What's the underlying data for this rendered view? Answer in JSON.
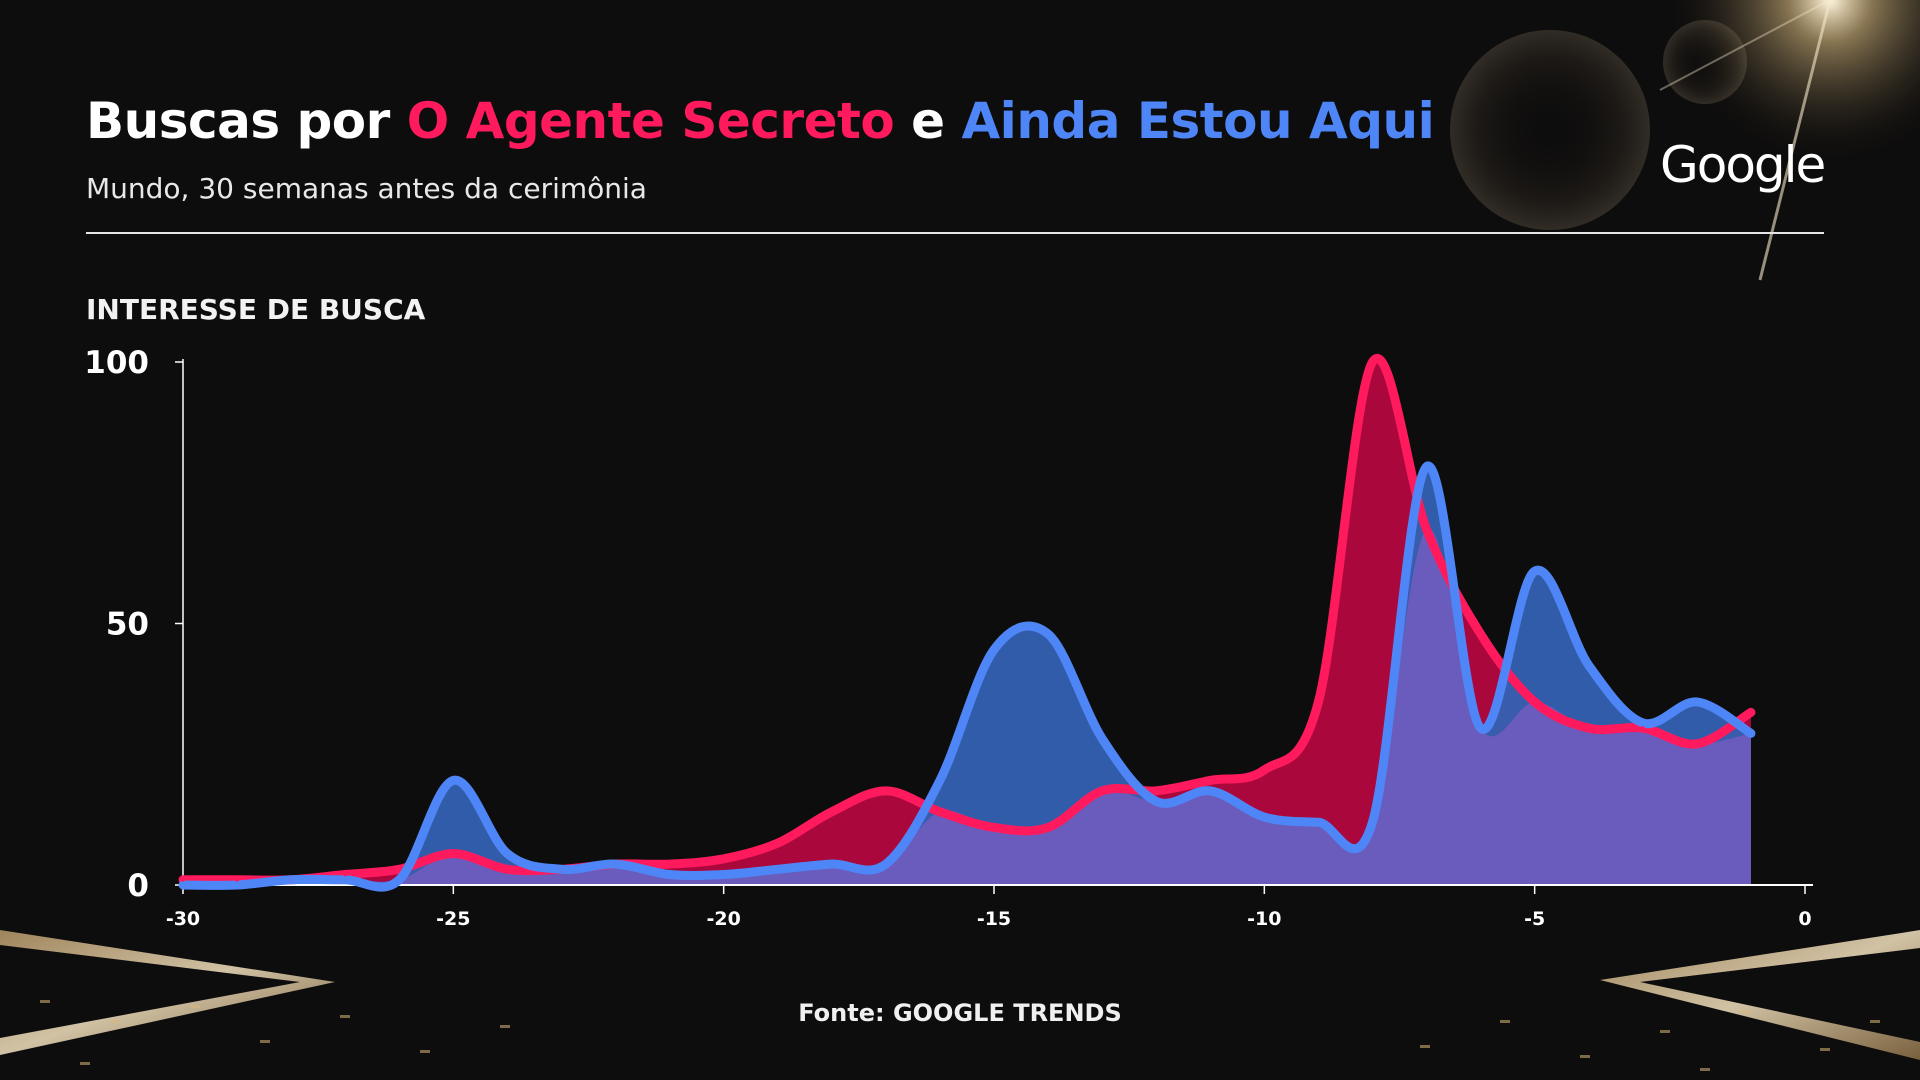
{
  "title": {
    "prefix": "Buscas por ",
    "series_a": "O Agente Secreto",
    "connector": " e ",
    "series_b": "Ainda Estou Aqui"
  },
  "subtitle": "Mundo, 30 semanas antes da cerimônia",
  "logo": "Google",
  "source": "Fonte: GOOGLE TRENDS",
  "colors": {
    "series_a": "#ff1a5e",
    "series_b": "#4f86f7",
    "series_a_fill": "#b3073f",
    "series_b_fill": "#3461b3",
    "overlap_fill": "#6a5cbd",
    "background": "#0e0d0d"
  },
  "chart_data": {
    "type": "area",
    "title": "Buscas por O Agente Secreto e Ainda Estou Aqui",
    "subtitle": "Mundo, 30 semanas antes da cerimônia",
    "ylabel": "INTERESSE DE BUSCA",
    "xlabel": "",
    "xlim": [
      -30,
      0
    ],
    "ylim": [
      0,
      100
    ],
    "x_ticks": [
      -30,
      -25,
      -20,
      -15,
      -10,
      -5,
      0
    ],
    "y_ticks": [
      0,
      50,
      100
    ],
    "grid": false,
    "x": [
      -30,
      -29,
      -28,
      -27,
      -26,
      -25,
      -24,
      -23,
      -22,
      -21,
      -20,
      -19,
      -18,
      -17,
      -16,
      -15,
      -14,
      -13,
      -12,
      -11,
      -10,
      -9,
      -8,
      -7,
      -6,
      -5,
      -4,
      -3,
      -2,
      -1
    ],
    "series": [
      {
        "name": "O Agente Secreto",
        "color": "#ff1a5e",
        "values": [
          1,
          1,
          1,
          2,
          3,
          6,
          3,
          3,
          4,
          4,
          5,
          8,
          14,
          18,
          14,
          11,
          11,
          18,
          18,
          20,
          22,
          35,
          100,
          68,
          48,
          35,
          30,
          30,
          27,
          33
        ]
      },
      {
        "name": "Ainda Estou Aqui",
        "color": "#4f86f7",
        "values": [
          0,
          0,
          1,
          1,
          1,
          20,
          6,
          3,
          4,
          2,
          2,
          3,
          4,
          4,
          20,
          45,
          48,
          28,
          16,
          18,
          13,
          12,
          12,
          80,
          30,
          60,
          42,
          31,
          35,
          29
        ]
      }
    ]
  }
}
